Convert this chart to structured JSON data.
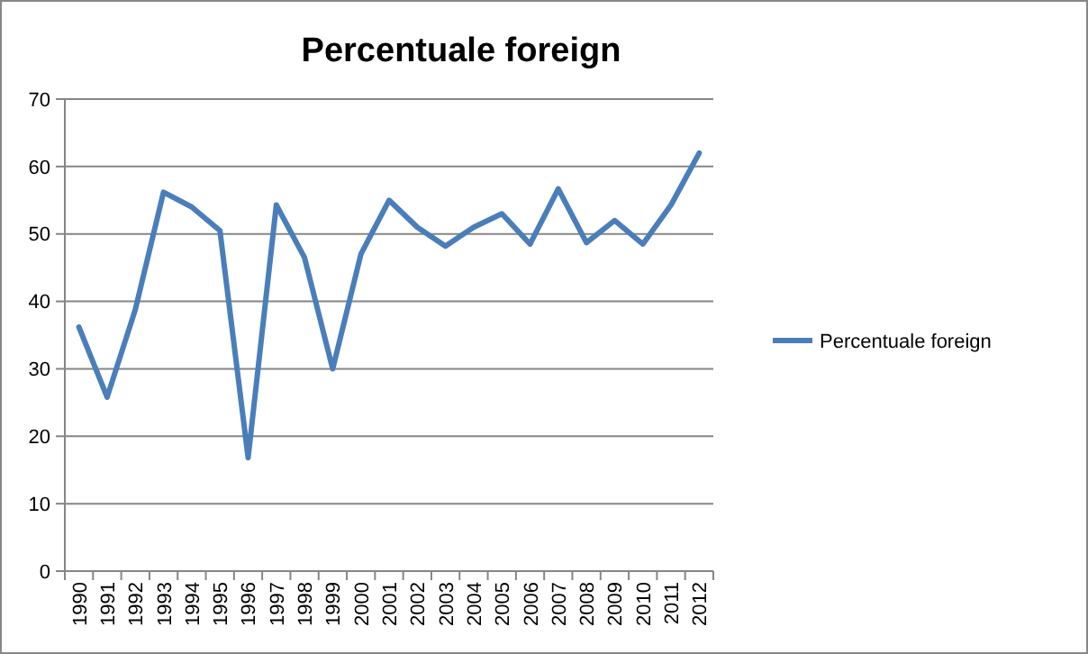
{
  "chart_data": {
    "type": "line",
    "title": "Percentuale foreign",
    "categories": [
      "1990",
      "1991",
      "1992",
      "1993",
      "1994",
      "1995",
      "1996",
      "1997",
      "1998",
      "1999",
      "2000",
      "2001",
      "2002",
      "2003",
      "2004",
      "2005",
      "2006",
      "2007",
      "2008",
      "2009",
      "2010",
      "2011",
      "2012"
    ],
    "series": [
      {
        "name": "Percentuale foreign",
        "color": "#4a7ebb",
        "values": [
          36.2,
          25.8,
          38.8,
          56.2,
          54,
          50.5,
          16.8,
          54.3,
          46.5,
          30,
          47,
          55,
          51,
          48.2,
          51,
          53,
          48.5,
          56.7,
          48.7,
          52,
          48.5,
          54.3,
          62
        ]
      }
    ],
    "ylim": [
      0,
      70
    ],
    "yticks": [
      0,
      10,
      20,
      30,
      40,
      50,
      60,
      70
    ],
    "grid": "y",
    "legend": "right",
    "marker": "none",
    "line_style": "solid"
  }
}
